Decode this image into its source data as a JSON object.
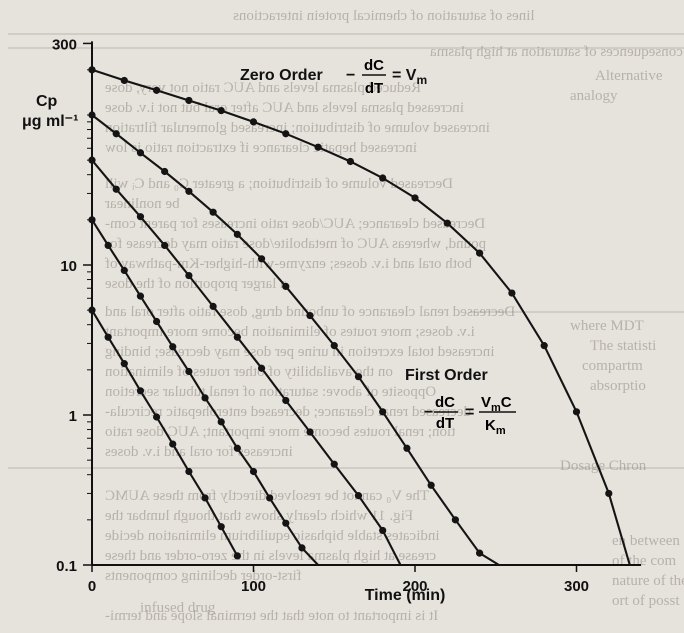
{
  "background_text": {
    "lines": [
      "lines of saturation of chemical protein interactions",
      "Possible consequences of saturation at high plasma",
      "Reduced plasma levels and AUC ratio not very, dose",
      "increased plasma levels and AUC after oral but not i.v. dose",
      "increased volume of distribution; increased glomerular filtration",
      "increased hepatic clearance if extraction ratio is low",
      "Decreased volume of distribution; a greater C₀ and Cᵢ will",
      "be nonlinear",
      "Decreased clearance; AUC/dose ratio increases for parent com-",
      "pound, whereas AUC of metabolite/dose ratio may decrease for",
      "both oral and i.v. doses; enzyme-with-higher-Km-pathway of",
      "a larger proportion of the dose",
      "Decreased renal clearance of unbound drug, dose ratio after oral and",
      "i.v. doses; more routes of elimination become more important",
      "increased total excretion in urine per dose may decrease; binding",
      "on the availability of other routes of elimination",
      "Opposite of above: saturation of renal tubular secretion",
      "decreased renal clearance; decreased enterohepatic recircula-",
      "tion; renal routes become more important; AUC/dose ratio",
      "increases for oral and i.v. doses",
      "The V₀ cannot be resolved directly from these AUMC",
      "Fig. 11 which clearly shows that though lumbar the",
      "indicates stable biphasic equilibrium elimination decide",
      "crease at high plasma levels in the zero-order and these",
      "first-order declining components",
      "It is important to note that the terminal slope and termi-",
      "Alternative",
      "analogy",
      "where MDT",
      "The statisti",
      "compartm",
      "absorptio",
      "Dosage Chron",
      "en between",
      "of the com",
      "nature of the",
      "ort of posst",
      "infused drug"
    ]
  },
  "chart_data": {
    "type": "line",
    "title": "",
    "xlabel": "Time (min)",
    "ylabel": "Cp",
    "ylabel_units": "μg ml⁻¹",
    "xlim": [
      0,
      340
    ],
    "ylim": [
      0.1,
      300
    ],
    "y_scale": "log",
    "x_ticks": [
      0,
      100,
      200,
      300
    ],
    "x_tick_labels": [
      "0",
      "100",
      "200",
      "300"
    ],
    "y_ticks": [
      0.1,
      1,
      10,
      300
    ],
    "y_tick_labels": [
      "0.1",
      "1",
      "10",
      "300"
    ],
    "y_minor_ticks": [
      0.2,
      0.3,
      0.4,
      0.5,
      0.6,
      0.7,
      0.8,
      0.9,
      2,
      3,
      4,
      5,
      6,
      7,
      8,
      9,
      20,
      30,
      40,
      50,
      60,
      70,
      80,
      90,
      100,
      200
    ],
    "grid": false,
    "legend": "none",
    "series": [
      {
        "x": [
          0,
          20,
          40,
          60,
          80,
          100,
          120,
          140,
          160,
          180,
          200,
          220,
          240,
          260,
          280,
          300,
          320,
          333
        ],
        "y": [
          200,
          170,
          146,
          125,
          107,
          90,
          75,
          61,
          49,
          38,
          28,
          19,
          12,
          6.5,
          2.9,
          1.05,
          0.3,
          0.1
        ]
      },
      {
        "x": [
          0,
          15,
          30,
          45,
          60,
          75,
          90,
          105,
          120,
          135,
          150,
          165,
          180,
          195,
          210,
          225,
          240,
          252
        ],
        "y": [
          100,
          75,
          56,
          42,
          31,
          22.5,
          16,
          11,
          7.2,
          4.6,
          2.9,
          1.8,
          1.05,
          0.6,
          0.34,
          0.2,
          0.12,
          0.1
        ]
      },
      {
        "x": [
          0,
          15,
          30,
          45,
          60,
          75,
          90,
          105,
          120,
          135,
          150,
          165,
          180,
          191
        ],
        "y": [
          50,
          32,
          21,
          13.5,
          8.5,
          5.3,
          3.3,
          2.05,
          1.25,
          0.77,
          0.47,
          0.29,
          0.17,
          0.1
        ]
      },
      {
        "x": [
          0,
          10,
          20,
          30,
          40,
          50,
          60,
          70,
          80,
          90,
          100,
          110,
          120,
          130,
          140
        ],
        "y": [
          20,
          13.5,
          9.2,
          6.2,
          4.2,
          2.85,
          1.95,
          1.3,
          0.9,
          0.6,
          0.42,
          0.28,
          0.19,
          0.13,
          0.1
        ]
      },
      {
        "x": [
          0,
          10,
          20,
          30,
          40,
          50,
          60,
          70,
          80,
          90
        ],
        "y": [
          5,
          3.3,
          2.2,
          1.45,
          0.97,
          0.64,
          0.42,
          0.28,
          0.18,
          0.115
        ]
      }
    ],
    "annotations": {
      "zero_order": {
        "label": "Zero Order",
        "fraction_num": "dC",
        "fraction_den": "dT",
        "rhs": "= V",
        "rhs_sub": "m"
      },
      "first_order": {
        "label": "First Order",
        "fraction_num": "dC",
        "fraction_den": "dT",
        "rhs_num": "V",
        "rhs_num_sub": "m",
        "rhs_num_tail": "C",
        "rhs_den": "K",
        "rhs_den_sub": "m",
        "prefix_minus": "−",
        "equals": "="
      }
    },
    "colors": {
      "line": "#141414",
      "marker": "#141414",
      "background": "#e6e2dc"
    }
  }
}
